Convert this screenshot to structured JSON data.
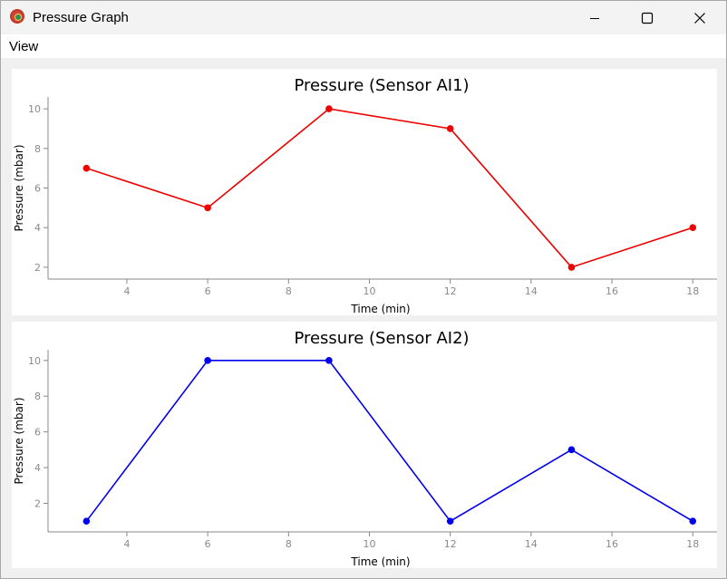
{
  "window": {
    "title": "Pressure Graph",
    "icon": "app-gauge-icon"
  },
  "menu": {
    "items": [
      {
        "label": "View"
      }
    ]
  },
  "colors": {
    "series1": "#ee0000",
    "series2": "#0000ee",
    "axis": "#888888",
    "tick_label": "#8a8a8a"
  },
  "chart_data": [
    {
      "type": "line",
      "title": "Pressure (Sensor AI1)",
      "xlabel": "Time (min)",
      "ylabel": "Pressure (mbar)",
      "x": [
        3,
        6,
        9,
        12,
        15,
        18
      ],
      "series": [
        {
          "values": [
            7,
            5,
            10,
            9,
            2,
            4
          ],
          "color": "#ee0000"
        }
      ],
      "xticks": [
        4,
        6,
        8,
        10,
        12,
        14,
        16,
        18
      ],
      "yticks": [
        2,
        4,
        6,
        8,
        10
      ],
      "xlim": [
        2.05,
        18.6
      ],
      "ylim": [
        1.4,
        10.6
      ],
      "grid": false
    },
    {
      "type": "line",
      "title": "Pressure (Sensor AI2)",
      "xlabel": "Time (min)",
      "ylabel": "Pressure (mbar)",
      "x": [
        3,
        6,
        9,
        12,
        15,
        18
      ],
      "series": [
        {
          "values": [
            1,
            10,
            10,
            1,
            5,
            1
          ],
          "color": "#0000ee"
        }
      ],
      "xticks": [
        4,
        6,
        8,
        10,
        12,
        14,
        16,
        18
      ],
      "yticks": [
        2,
        4,
        6,
        8,
        10
      ],
      "xlim": [
        2.05,
        18.6
      ],
      "ylim": [
        0.4,
        10.6
      ],
      "grid": false
    }
  ]
}
